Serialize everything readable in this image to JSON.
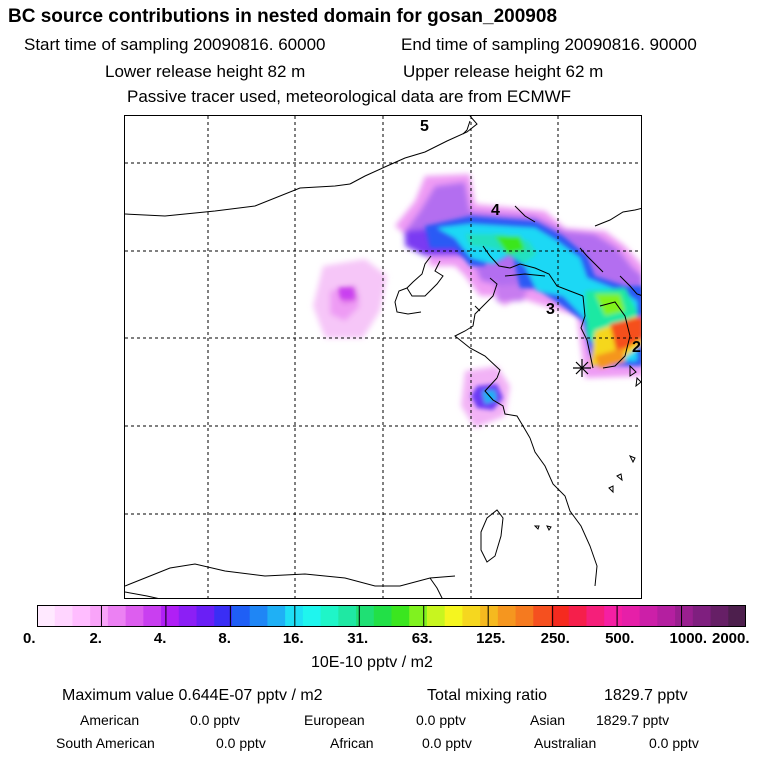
{
  "header": {
    "title": "BC  source contributions in nested domain for gosan_200908",
    "start_label": "Start time of sampling 20090816. 60000",
    "end_label": "End time of sampling 20090816. 90000",
    "lower_label": "Lower release height   82 m",
    "upper_label": "Upper release height   62 m",
    "tracer_label": "Passive tracer used, meteorological data are from ECMWF"
  },
  "map": {
    "day_labels": [
      "5",
      "4",
      "3",
      "2"
    ],
    "receptor": "gosan"
  },
  "colorbar": {
    "colors": [
      "#ffe9ff",
      "#ffd5ff",
      "#ffbdff",
      "#f9a4f9",
      "#ec81f3",
      "#dd5eef",
      "#c93ff0",
      "#b01ff5",
      "#8c1ff5",
      "#6a1ff5",
      "#3a2ef5",
      "#1f5ff5",
      "#1f86f5",
      "#1fb0f5",
      "#1fdff5",
      "#1ff5ee",
      "#1ff5c8",
      "#1fe8a3",
      "#1fe074",
      "#22e047",
      "#3be61f",
      "#80f21f",
      "#c8f51f",
      "#f5f51f",
      "#f5d71f",
      "#f5b91f",
      "#f5961f",
      "#f57a1f",
      "#f5501f",
      "#f52a1f",
      "#f51f4b",
      "#f51f7a",
      "#f51fa3",
      "#e61fa8",
      "#cc1fa8",
      "#b41fa0",
      "#991f8f",
      "#7f1f7f",
      "#661f66",
      "#4d1f4d"
    ],
    "tick_labels": [
      "0.",
      "2.",
      "4.",
      "8.",
      "16.",
      "31.",
      "63.",
      "125.",
      "250.",
      "500.",
      "1000.",
      "2000."
    ],
    "unit": "10E-10 pptv / m2"
  },
  "stats": {
    "max_line": "Maximum value  0.644E-07 pptv / m2",
    "total_label": "Total mixing ratio",
    "total_value": "1829.7 pptv",
    "american_label": "American",
    "american_value": "0.0 pptv",
    "european_label": "European",
    "european_value": "0.0 pptv",
    "asian_label": "Asian",
    "asian_value": "1829.7 pptv",
    "southam_label": "South American",
    "southam_value": "0.0 pptv",
    "african_label": "African",
    "african_value": "0.0 pptv",
    "australian_label": "Australian",
    "australian_value": "0.0 pptv"
  }
}
